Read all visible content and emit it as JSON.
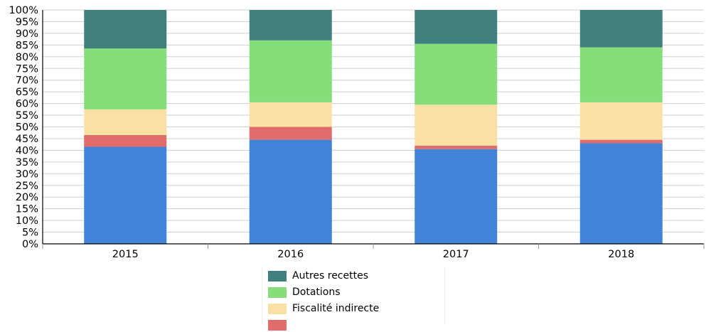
{
  "chart_data": {
    "type": "bar",
    "stacked": true,
    "categories": [
      "2015",
      "2016",
      "2017",
      "2018"
    ],
    "ylim": [
      0,
      100
    ],
    "yticks": [
      "0%",
      "5%",
      "10%",
      "15%",
      "20%",
      "25%",
      "30%",
      "35%",
      "40%",
      "45%",
      "50%",
      "55%",
      "60%",
      "65%",
      "70%",
      "75%",
      "80%",
      "85%",
      "90%",
      "95%",
      "100%"
    ],
    "grid": true,
    "legend": "bottom",
    "series": [
      {
        "name": "",
        "color": "#4183d7",
        "values": [
          41.5,
          44.5,
          40.5,
          43.0
        ]
      },
      {
        "name": "",
        "color": "#e06c6c",
        "values": [
          5.0,
          5.5,
          1.5,
          1.5
        ]
      },
      {
        "name": "Fiscalité indirecte",
        "color": "#fbe0a6",
        "values": [
          11.0,
          10.5,
          17.5,
          16.0
        ]
      },
      {
        "name": "Dotations",
        "color": "#86de7a",
        "values": [
          26.0,
          26.5,
          26.0,
          23.5
        ]
      },
      {
        "name": "Autres recettes",
        "color": "#40807e",
        "values": [
          16.5,
          13.0,
          14.5,
          16.0
        ]
      }
    ]
  }
}
